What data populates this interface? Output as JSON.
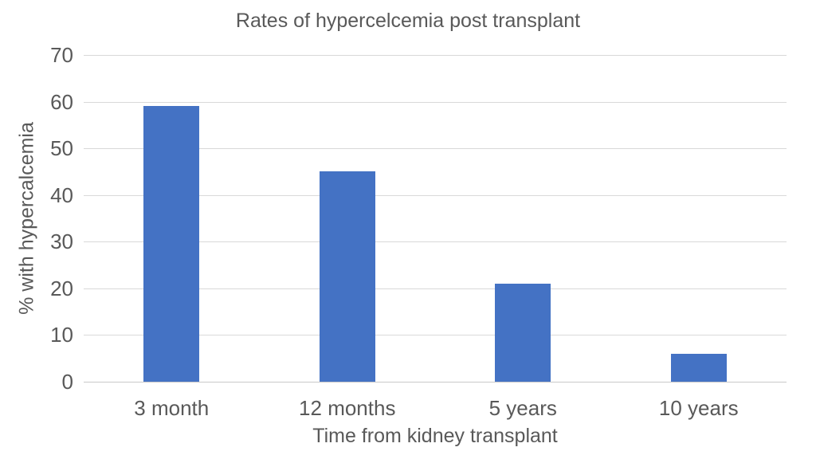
{
  "chart_data": {
    "type": "bar",
    "title": "Rates of hypercelcemia post transplant",
    "xlabel": "Time from kidney transplant",
    "ylabel": "% with hypercalcemia",
    "categories": [
      "3 month",
      "12 months",
      "5 years",
      "10 years"
    ],
    "values": [
      59,
      45,
      21,
      6
    ],
    "ylim": [
      0,
      70
    ],
    "yticks": [
      0,
      10,
      20,
      30,
      40,
      50,
      60,
      70
    ],
    "grid": true,
    "legend": false,
    "colors": {
      "bar": "#4472C4",
      "text": "#595959",
      "gridline": "#D9D9D9",
      "background": "#FFFFFF"
    }
  }
}
